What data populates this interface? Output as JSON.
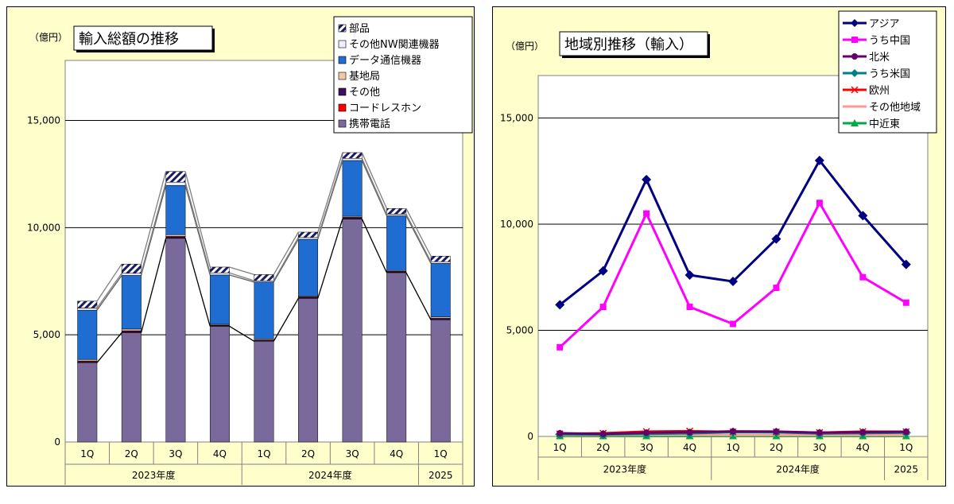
{
  "chart_data": [
    {
      "type": "bar",
      "stacked": true,
      "title": "輸入総額の推移",
      "unit": "（億円）",
      "categories": [
        "1Q",
        "2Q",
        "3Q",
        "4Q",
        "1Q",
        "2Q",
        "3Q",
        "4Q",
        "1Q"
      ],
      "year_groups": [
        {
          "label": "2023年度",
          "count": 4
        },
        {
          "label": "2024年度",
          "count": 4
        },
        {
          "label": "2025",
          "count": 1
        }
      ],
      "ylim": [
        0,
        17800
      ],
      "yticks": [
        "0",
        "5,000",
        "10,000",
        "15,000"
      ],
      "grid": true,
      "legend_position": "top-right",
      "series": [
        {
          "name": "携帯電話",
          "color": "#7a6a9c",
          "values": [
            3700,
            5100,
            9500,
            5400,
            4700,
            6700,
            10400,
            7900,
            5700
          ]
        },
        {
          "name": "コードレスホン",
          "color": "#ff0000",
          "values": [
            30,
            30,
            30,
            20,
            20,
            20,
            20,
            20,
            20
          ]
        },
        {
          "name": "その他",
          "color": "#3f1060",
          "values": [
            50,
            60,
            60,
            30,
            40,
            50,
            60,
            40,
            50
          ]
        },
        {
          "name": "基地局",
          "color": "#f4c7a8",
          "values": [
            70,
            80,
            80,
            40,
            50,
            40,
            50,
            40,
            60
          ]
        },
        {
          "name": "データ通信機器",
          "color": "#1f6dd0",
          "values": [
            2300,
            2500,
            2300,
            2300,
            2650,
            2650,
            2600,
            2550,
            2500
          ]
        },
        {
          "name": "その他NW関連機器",
          "color": "#eef0ff",
          "values": [
            100,
            100,
            150,
            100,
            60,
            80,
            100,
            80,
            80
          ]
        },
        {
          "name": "部品",
          "color": "#1a1a66",
          "values": [
            320,
            430,
            500,
            270,
            290,
            250,
            270,
            260,
            260
          ]
        }
      ],
      "legend_order": [
        "部品",
        "その他NW関連機器",
        "データ通信機器",
        "基地局",
        "その他",
        "コードレスホン",
        "携帯電話"
      ]
    },
    {
      "type": "line",
      "title": "地域別推移（輸入）",
      "unit": "（億円）",
      "categories": [
        "1Q",
        "2Q",
        "3Q",
        "4Q",
        "1Q",
        "2Q",
        "3Q",
        "4Q",
        "1Q"
      ],
      "year_groups": [
        {
          "label": "2023年度",
          "count": 4
        },
        {
          "label": "2024年度",
          "count": 4
        },
        {
          "label": "2025",
          "count": 1
        }
      ],
      "ylim": [
        0,
        17000
      ],
      "yticks": [
        "0",
        "5,000",
        "10,000",
        "15,000"
      ],
      "grid": true,
      "legend_position": "top-right",
      "series": [
        {
          "name": "アジア",
          "color": "#000080",
          "marker": "diamond",
          "values": [
            6200,
            7800,
            12100,
            7600,
            7300,
            9300,
            13000,
            10400,
            8100
          ]
        },
        {
          "name": "うち中国",
          "color": "#ff00ff",
          "marker": "square",
          "values": [
            4200,
            6100,
            10500,
            6100,
            5300,
            7000,
            11000,
            7500,
            6300
          ]
        },
        {
          "name": "北米",
          "color": "#660066",
          "marker": "circle",
          "values": [
            150,
            120,
            180,
            200,
            240,
            230,
            180,
            200,
            220
          ]
        },
        {
          "name": "うち米国",
          "color": "#008080",
          "marker": "diamond",
          "values": [
            100,
            90,
            120,
            150,
            200,
            190,
            140,
            160,
            180
          ]
        },
        {
          "name": "欧州",
          "color": "#ff0000",
          "marker": "x",
          "values": [
            120,
            150,
            230,
            250,
            210,
            210,
            180,
            230,
            220
          ]
        },
        {
          "name": "その他地域",
          "color": "#ff9999",
          "marker": "none",
          "values": [
            60,
            60,
            70,
            70,
            60,
            60,
            60,
            60,
            60
          ]
        },
        {
          "name": "中近東",
          "color": "#00aa44",
          "marker": "triangle",
          "values": [
            20,
            20,
            20,
            20,
            20,
            20,
            20,
            20,
            20
          ]
        }
      ]
    }
  ]
}
